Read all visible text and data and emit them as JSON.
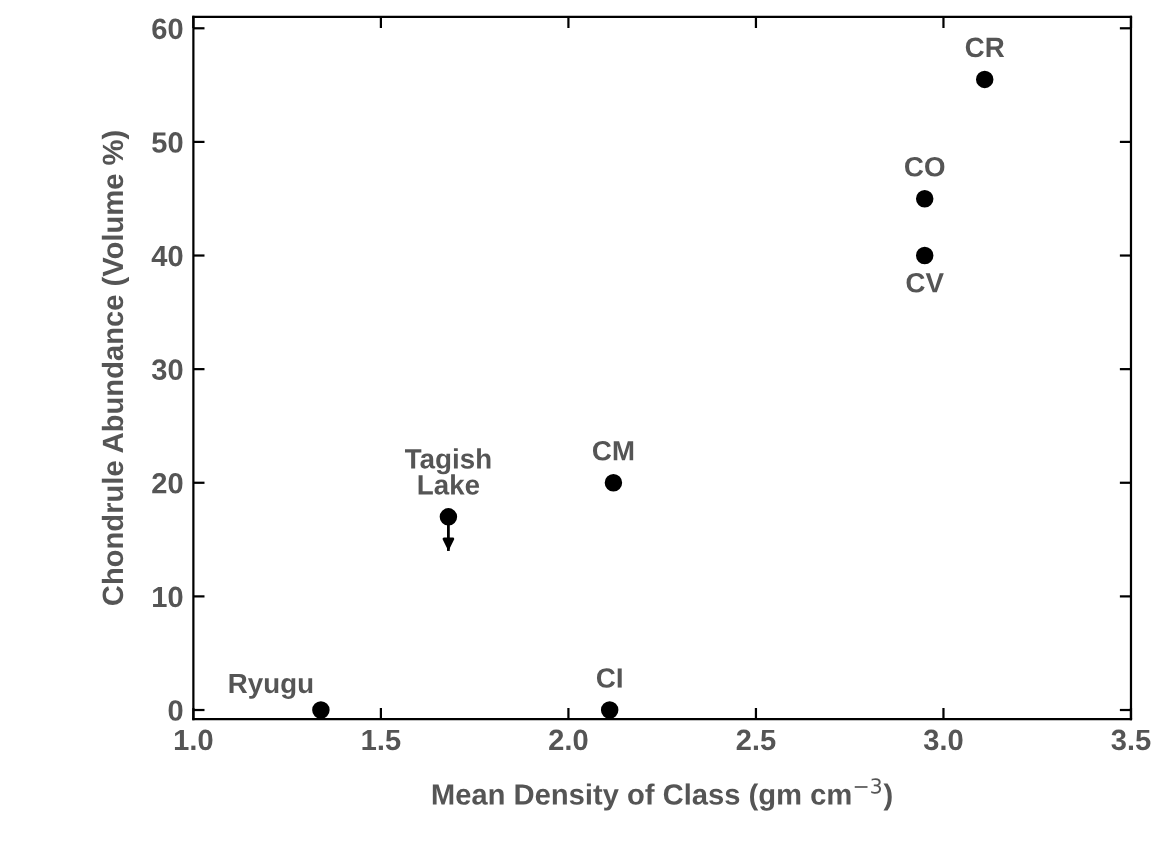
{
  "chart_data": {
    "type": "scatter",
    "xlabel": "Mean Density of Class (gm cm$^{−3}$)",
    "ylabel": "Chondrule Abundance (Volume %)",
    "x": [
      1.34,
      1.68,
      2.12,
      2.11,
      2.95,
      2.95,
      3.11
    ],
    "values": [
      0,
      17,
      20,
      0,
      45,
      40,
      55.5
    ],
    "errors": [
      null,
      [
        14,
        17
      ],
      null,
      null,
      null,
      null,
      null
    ],
    "color": "#000000",
    "marker": "circle",
    "annotations": [
      {
        "text": "Ryugu",
        "x": 1.34,
        "y": 0
      },
      {
        "text": "Tagish\nLake",
        "x": 1.68,
        "y": 17
      },
      {
        "text": "CM",
        "x": 2.12,
        "y": 20
      },
      {
        "text": "CI",
        "x": 2.11,
        "y": 0
      },
      {
        "text": "CO",
        "x": 2.95,
        "y": 45
      },
      {
        "text": "CV",
        "x": 2.95,
        "y": 40
      },
      {
        "text": "CR",
        "x": 3.11,
        "y": 55.5
      }
    ],
    "xlim": [
      1.0,
      3.5
    ],
    "xticks": [
      {
        "value": 1.0,
        "label": "1.0"
      },
      1.5,
      {
        "value": 2.0,
        "label": "2.0"
      },
      2.5,
      {
        "value": 3.0,
        "label": "3.0"
      },
      3.5
    ],
    "ylim": [
      -0.8,
      61
    ],
    "yticks": [
      0,
      10,
      20,
      30,
      40,
      50,
      60
    ],
    "grid": false
  }
}
